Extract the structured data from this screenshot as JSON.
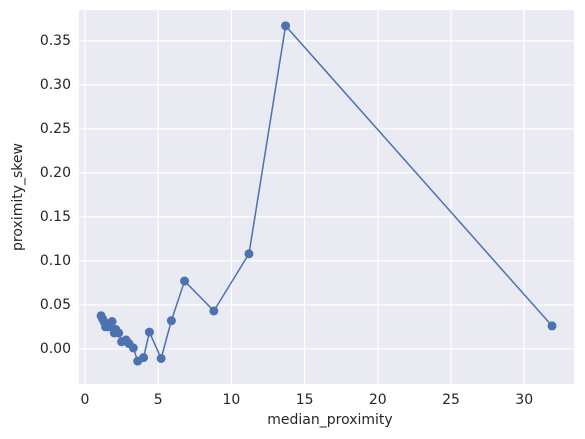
{
  "chart_data": {
    "type": "line",
    "x_label": "median_proximity",
    "y_label": "proximity_skew",
    "x": [
      1.1,
      1.2,
      1.3,
      1.4,
      1.5,
      1.6,
      1.85,
      2.0,
      2.1,
      2.3,
      2.5,
      2.8,
      3.0,
      3.3,
      3.6,
      4.0,
      4.4,
      5.2,
      5.9,
      6.8,
      8.8,
      11.2,
      13.7,
      31.9
    ],
    "series": [
      {
        "name": "proximity_skew",
        "color": "#4c72b0",
        "values": [
          0.0375,
          0.034,
          0.031,
          0.025,
          0.027,
          0.025,
          0.031,
          0.018,
          0.022,
          0.018,
          0.008,
          0.01,
          0.006,
          0.001,
          -0.014,
          -0.01,
          0.019,
          -0.011,
          0.032,
          0.077,
          0.043,
          0.108,
          0.367,
          0.026
        ]
      }
    ],
    "xlim": [
      -0.41,
      33.4
    ],
    "xticks": [
      0,
      5,
      10,
      15,
      20,
      25,
      30
    ],
    "ylim": [
      -0.04,
      0.385
    ],
    "yticks": [
      {
        "value": 0,
        "label": "0.00"
      },
      {
        "value": 0.05,
        "label": "0.05"
      },
      {
        "value": 0.1,
        "label": "0.10"
      },
      {
        "value": 0.15,
        "label": "0.15"
      },
      {
        "value": 0.2,
        "label": "0.20"
      },
      {
        "value": 0.25,
        "label": "0.25"
      },
      {
        "value": 0.3,
        "label": "0.30"
      },
      {
        "value": 0.35,
        "label": "0.35"
      }
    ],
    "grid": true,
    "background": "#eaeaf2"
  }
}
